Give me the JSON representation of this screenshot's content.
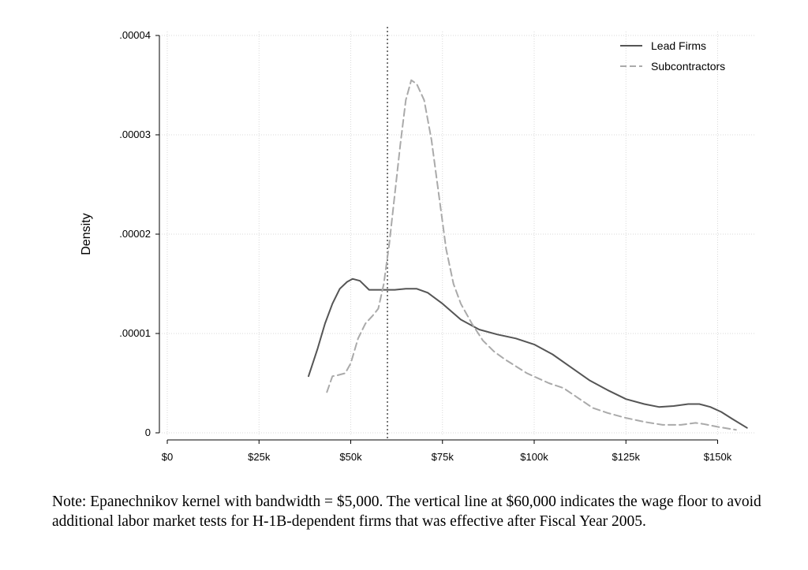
{
  "chart_data": {
    "type": "line",
    "ylabel": "Density",
    "xlabel": "",
    "x_ticks": [
      {
        "value": 0,
        "label": "$0"
      },
      {
        "value": 25000,
        "label": "$25k"
      },
      {
        "value": 50000,
        "label": "$50k"
      },
      {
        "value": 75000,
        "label": "$75k"
      },
      {
        "value": 100000,
        "label": "$100k"
      },
      {
        "value": 125000,
        "label": "$125k"
      },
      {
        "value": 150000,
        "label": "$150k"
      }
    ],
    "y_ticks": [
      {
        "value": 0,
        "label": "0"
      },
      {
        "value": 1e-05,
        "label": ".00001"
      },
      {
        "value": 2e-05,
        "label": ".00002"
      },
      {
        "value": 3e-05,
        "label": ".00003"
      },
      {
        "value": 4e-05,
        "label": ".00004"
      }
    ],
    "xlim": [
      0,
      160000
    ],
    "ylim": [
      0,
      4e-05
    ],
    "grid": true,
    "legend_position": "top-right",
    "vertical_line": {
      "x": 60000,
      "style": "dotted"
    },
    "series": [
      {
        "name": "Lead Firms",
        "style": "solid",
        "color": "#555555",
        "points": [
          [
            38500,
            5.7e-06
          ],
          [
            41000,
            8.5e-06
          ],
          [
            43000,
            1.1e-05
          ],
          [
            45000,
            1.3e-05
          ],
          [
            47000,
            1.45e-05
          ],
          [
            49000,
            1.52e-05
          ],
          [
            50500,
            1.55e-05
          ],
          [
            52500,
            1.53e-05
          ],
          [
            55000,
            1.44e-05
          ],
          [
            58000,
            1.44e-05
          ],
          [
            62000,
            1.44e-05
          ],
          [
            65000,
            1.45e-05
          ],
          [
            68000,
            1.45e-05
          ],
          [
            71000,
            1.41e-05
          ],
          [
            75000,
            1.3e-05
          ],
          [
            80000,
            1.14e-05
          ],
          [
            85000,
            1.04e-05
          ],
          [
            90000,
            9.9e-06
          ],
          [
            95000,
            9.5e-06
          ],
          [
            100000,
            8.9e-06
          ],
          [
            105000,
            7.9e-06
          ],
          [
            110000,
            6.6e-06
          ],
          [
            115000,
            5.3e-06
          ],
          [
            120000,
            4.3e-06
          ],
          [
            125000,
            3.4e-06
          ],
          [
            130000,
            2.9e-06
          ],
          [
            134000,
            2.6e-06
          ],
          [
            138000,
            2.7e-06
          ],
          [
            142000,
            2.9e-06
          ],
          [
            145000,
            2.9e-06
          ],
          [
            148000,
            2.6e-06
          ],
          [
            151000,
            2.1e-06
          ],
          [
            154000,
            1.4e-06
          ],
          [
            158000,
            5e-07
          ]
        ]
      },
      {
        "name": "Subcontractors",
        "style": "dashed",
        "color": "#aaaaaa",
        "points": [
          [
            43500,
            4.1e-06
          ],
          [
            45000,
            5.7e-06
          ],
          [
            46500,
            5.8e-06
          ],
          [
            48500,
            6e-06
          ],
          [
            50000,
            7e-06
          ],
          [
            52000,
            9.5e-06
          ],
          [
            54000,
            1.1e-05
          ],
          [
            56000,
            1.18e-05
          ],
          [
            57500,
            1.25e-05
          ],
          [
            59000,
            1.5e-05
          ],
          [
            60500,
            1.9e-05
          ],
          [
            62000,
            2.4e-05
          ],
          [
            63500,
            2.9e-05
          ],
          [
            65000,
            3.35e-05
          ],
          [
            66500,
            3.55e-05
          ],
          [
            68000,
            3.51e-05
          ],
          [
            70000,
            3.35e-05
          ],
          [
            72000,
            2.95e-05
          ],
          [
            74000,
            2.4e-05
          ],
          [
            76000,
            1.85e-05
          ],
          [
            78000,
            1.5e-05
          ],
          [
            80000,
            1.3e-05
          ],
          [
            83000,
            1.1e-05
          ],
          [
            86000,
            9.3e-06
          ],
          [
            89000,
            8.2e-06
          ],
          [
            92000,
            7.4e-06
          ],
          [
            95000,
            6.7e-06
          ],
          [
            98000,
            6e-06
          ],
          [
            101000,
            5.5e-06
          ],
          [
            104000,
            5e-06
          ],
          [
            108000,
            4.5e-06
          ],
          [
            112000,
            3.5e-06
          ],
          [
            116000,
            2.5e-06
          ],
          [
            120000,
            2e-06
          ],
          [
            125000,
            1.5e-06
          ],
          [
            130000,
            1.1e-06
          ],
          [
            135000,
            8e-07
          ],
          [
            140000,
            8e-07
          ],
          [
            144000,
            1e-06
          ],
          [
            146000,
            9e-07
          ],
          [
            150000,
            6e-07
          ],
          [
            155000,
            3e-07
          ]
        ]
      }
    ]
  },
  "note": "Note: Epanechnikov kernel with bandwidth = $5,000. The vertical line at $60,000 indicates the wage floor to avoid additional labor market tests for H-1B-dependent firms that was effective after Fiscal Year 2005."
}
